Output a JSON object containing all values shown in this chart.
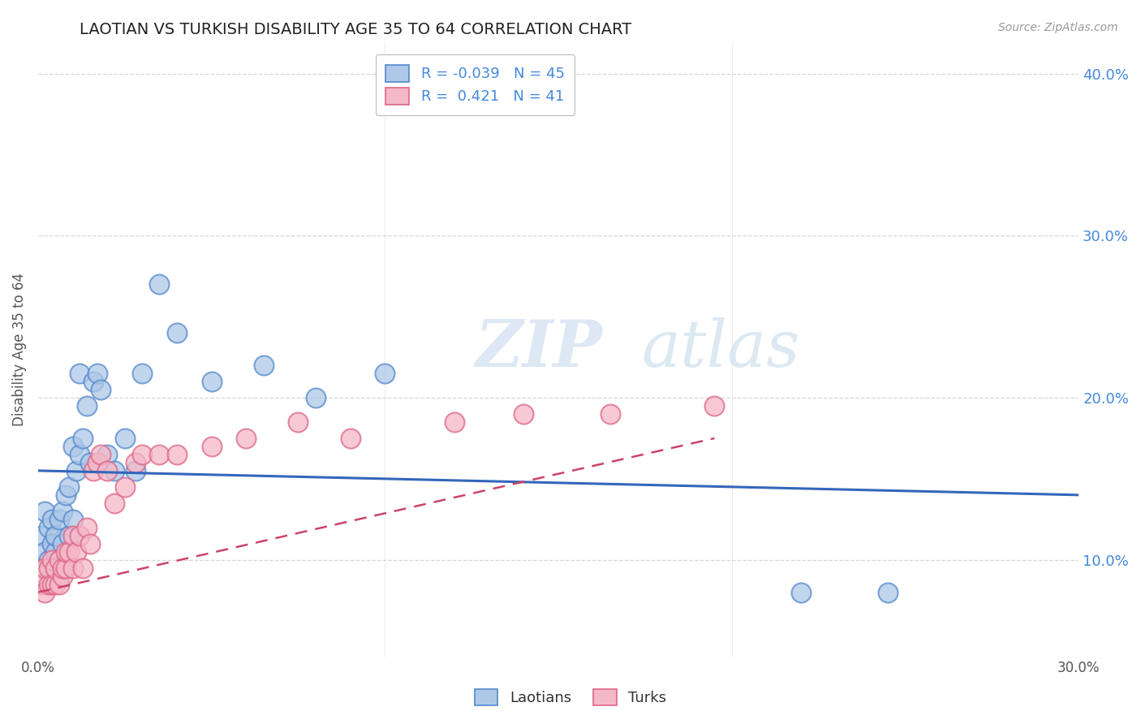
{
  "title": "LAOTIAN VS TURKISH DISABILITY AGE 35 TO 64 CORRELATION CHART",
  "source_text": "Source: ZipAtlas.com",
  "xlabel": "",
  "ylabel": "Disability Age 35 to 64",
  "xlim": [
    0.0,
    0.3
  ],
  "ylim": [
    0.04,
    0.42
  ],
  "xtick_labels": [
    "0.0%",
    "",
    "",
    "",
    "",
    "",
    "30.0%"
  ],
  "xtick_vals": [
    0.0,
    0.05,
    0.1,
    0.15,
    0.2,
    0.25,
    0.3
  ],
  "ytick_labels": [
    "10.0%",
    "20.0%",
    "30.0%",
    "40.0%"
  ],
  "ytick_vals": [
    0.1,
    0.2,
    0.3,
    0.4
  ],
  "laotian_color": "#adc8e8",
  "turkish_color": "#f5b8c8",
  "laotian_edge": "#5588cc",
  "turkish_edge": "#dd6688",
  "trendline_laotian_color": "#3366bb",
  "trendline_turkish_color": "#cc4466",
  "legend_laotian_label": "R = -0.039   N = 45",
  "legend_turkish_label": "R =  0.421   N = 41",
  "legend_title_laotian": "Laotians",
  "legend_title_turkish": "Turks",
  "watermark_zip": "ZIP",
  "watermark_atlas": "atlas",
  "laotian_x": [
    0.001,
    0.002,
    0.002,
    0.003,
    0.003,
    0.004,
    0.004,
    0.004,
    0.005,
    0.005,
    0.005,
    0.006,
    0.006,
    0.006,
    0.007,
    0.007,
    0.007,
    0.008,
    0.008,
    0.009,
    0.009,
    0.01,
    0.01,
    0.011,
    0.012,
    0.012,
    0.013,
    0.014,
    0.015,
    0.016,
    0.017,
    0.018,
    0.02,
    0.022,
    0.025,
    0.028,
    0.03,
    0.035,
    0.04,
    0.05,
    0.065,
    0.08,
    0.1,
    0.22,
    0.245
  ],
  "laotian_y": [
    0.115,
    0.105,
    0.13,
    0.1,
    0.12,
    0.095,
    0.11,
    0.125,
    0.095,
    0.105,
    0.115,
    0.09,
    0.1,
    0.125,
    0.095,
    0.11,
    0.13,
    0.1,
    0.14,
    0.115,
    0.145,
    0.125,
    0.17,
    0.155,
    0.165,
    0.215,
    0.175,
    0.195,
    0.16,
    0.21,
    0.215,
    0.205,
    0.165,
    0.155,
    0.175,
    0.155,
    0.215,
    0.27,
    0.24,
    0.21,
    0.22,
    0.2,
    0.215,
    0.08,
    0.08
  ],
  "turkish_x": [
    0.001,
    0.002,
    0.002,
    0.003,
    0.003,
    0.004,
    0.004,
    0.005,
    0.005,
    0.006,
    0.006,
    0.007,
    0.007,
    0.008,
    0.008,
    0.009,
    0.01,
    0.01,
    0.011,
    0.012,
    0.013,
    0.014,
    0.015,
    0.016,
    0.017,
    0.018,
    0.02,
    0.022,
    0.025,
    0.028,
    0.03,
    0.035,
    0.04,
    0.05,
    0.06,
    0.075,
    0.09,
    0.12,
    0.14,
    0.165,
    0.195
  ],
  "turkish_y": [
    0.085,
    0.08,
    0.095,
    0.085,
    0.095,
    0.085,
    0.1,
    0.085,
    0.095,
    0.085,
    0.1,
    0.09,
    0.095,
    0.095,
    0.105,
    0.105,
    0.095,
    0.115,
    0.105,
    0.115,
    0.095,
    0.12,
    0.11,
    0.155,
    0.16,
    0.165,
    0.155,
    0.135,
    0.145,
    0.16,
    0.165,
    0.165,
    0.165,
    0.17,
    0.175,
    0.185,
    0.175,
    0.185,
    0.19,
    0.19,
    0.195
  ],
  "trendline_laotian_x0": 0.0,
  "trendline_laotian_x1": 0.3,
  "trendline_laotian_y0": 0.155,
  "trendline_laotian_y1": 0.14,
  "trendline_turkish_x0": 0.0,
  "trendline_turkish_x1": 0.195,
  "trendline_turkish_y0": 0.08,
  "trendline_turkish_y1": 0.175
}
